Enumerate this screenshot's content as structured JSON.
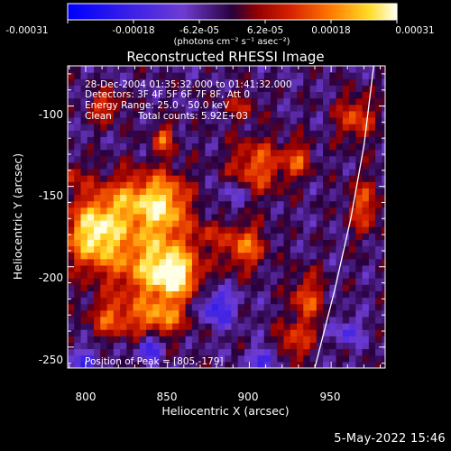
{
  "chart_data": {
    "type": "heatmap",
    "title": "Reconstructed RHESSI Image",
    "xlabel": "Heliocentric X (arcsec)",
    "ylabel": "Heliocentric Y (arcsec)",
    "xlim": [
      789,
      983
    ],
    "ylim": [
      -263,
      -75
    ],
    "xticks": [
      "800",
      "850",
      "900",
      "950"
    ],
    "yticks": [
      "-100",
      "-150",
      "-200",
      "-250"
    ],
    "colorbar": {
      "ticks": [
        "-0.00031",
        "-0.00018",
        "-6.2e-05",
        "6.2e-05",
        "0.00018",
        "0.00031"
      ],
      "label": "(photons cm⁻² s⁻¹ asec⁻²)",
      "range": [
        -0.00031,
        0.00031
      ]
    },
    "annotations": {
      "time": "28-Dec-2004 01:35:32.000 to 01:41:32.000",
      "detectors": "Detectors: 3F 4F 5F 6F 7F 8F, Att 0",
      "energy": "Energy Range: 25.0 - 50.0 keV",
      "method": "Clean",
      "counts": "Total counts: 5.92E+03",
      "peak": "Position of Peak = [805,-179]"
    },
    "peak": [
      805,
      -179
    ],
    "limb": [
      [
        940,
        -263
      ],
      [
        952,
        -215
      ],
      [
        962,
        -170
      ],
      [
        970,
        -125
      ],
      [
        976,
        -75
      ]
    ],
    "sources": [
      {
        "x": 805,
        "y": -179,
        "amp": 0.00031,
        "sx": 12,
        "sy": 15
      },
      {
        "x": 840,
        "y": -197,
        "amp": 0.00024,
        "sx": 18,
        "sy": 20
      },
      {
        "x": 855,
        "y": -205,
        "amp": 0.00023,
        "sx": 10,
        "sy": 10
      },
      {
        "x": 830,
        "y": -158,
        "amp": 0.0002,
        "sx": 15,
        "sy": 12
      },
      {
        "x": 850,
        "y": -160,
        "amp": 0.00018,
        "sx": 10,
        "sy": 14
      },
      {
        "x": 815,
        "y": -232,
        "amp": 0.00016,
        "sx": 9,
        "sy": 8
      },
      {
        "x": 845,
        "y": -232,
        "amp": 0.00018,
        "sx": 12,
        "sy": 8
      },
      {
        "x": 812,
        "y": -100,
        "amp": 0.00015,
        "sx": 7,
        "sy": 7
      },
      {
        "x": 848,
        "y": -120,
        "amp": 0.00018,
        "sx": 5,
        "sy": 6
      },
      {
        "x": 905,
        "y": -137,
        "amp": 0.00018,
        "sx": 12,
        "sy": 12
      },
      {
        "x": 930,
        "y": -133,
        "amp": 0.00015,
        "sx": 6,
        "sy": 8
      },
      {
        "x": 897,
        "y": -187,
        "amp": 0.0002,
        "sx": 9,
        "sy": 10
      },
      {
        "x": 935,
        "y": -220,
        "amp": 0.00017,
        "sx": 7,
        "sy": 12
      },
      {
        "x": 927,
        "y": -247,
        "amp": 0.00015,
        "sx": 8,
        "sy": 8
      },
      {
        "x": 965,
        "y": -107,
        "amp": 0.00017,
        "sx": 8,
        "sy": 10
      },
      {
        "x": 970,
        "y": -162,
        "amp": 0.00016,
        "sx": 7,
        "sy": 12
      },
      {
        "x": 895,
        "y": -100,
        "amp": 0.0001,
        "sx": 8,
        "sy": 6
      },
      {
        "x": 875,
        "y": -180,
        "amp": 9e-05,
        "sx": 6,
        "sy": 6
      },
      {
        "x": 790,
        "y": -143,
        "amp": 0.00011,
        "sx": 7,
        "sy": 7
      },
      {
        "x": 880,
        "y": -225,
        "amp": -0.00018,
        "sx": 8,
        "sy": 8
      },
      {
        "x": 840,
        "y": -250,
        "amp": -0.0002,
        "sx": 5,
        "sy": 5
      },
      {
        "x": 910,
        "y": -257,
        "amp": -0.00017,
        "sx": 6,
        "sy": 5
      },
      {
        "x": 800,
        "y": -258,
        "amp": -0.00015,
        "sx": 6,
        "sy": 5
      },
      {
        "x": 960,
        "y": -240,
        "amp": -0.00012,
        "sx": 6,
        "sy": 6
      },
      {
        "x": 890,
        "y": -155,
        "amp": -0.0001,
        "sx": 6,
        "sy": 6
      }
    ]
  },
  "footer": {
    "timestamp": "5-May-2022 15:46"
  },
  "colors": {
    "background": "#000000",
    "text": "#ffffff",
    "limb": "#ffffff"
  }
}
